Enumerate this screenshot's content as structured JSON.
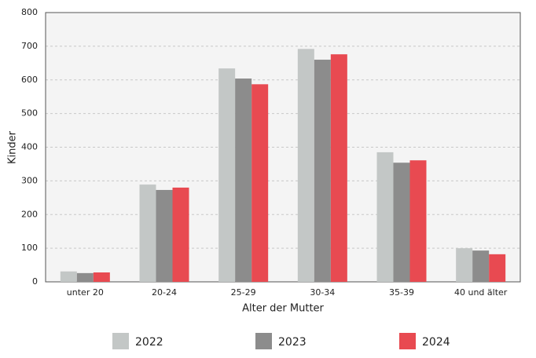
{
  "chart_data": {
    "type": "bar",
    "x_label": "Alter der Mutter",
    "y_label": "Kinder",
    "categories": [
      "unter 20",
      "20-24",
      "25-29",
      "30-34",
      "35-39",
      "40 und älter"
    ],
    "series": [
      {
        "name": "2022",
        "color": "#c3c7c6",
        "values": [
          31,
          289,
          634,
          692,
          385,
          100
        ]
      },
      {
        "name": "2023",
        "color": "#8c8c8c",
        "values": [
          26,
          273,
          604,
          660,
          354,
          93
        ]
      },
      {
        "name": "2024",
        "color": "#e84a51",
        "values": [
          28,
          280,
          587,
          676,
          361,
          82
        ]
      }
    ],
    "ylim": [
      0,
      800
    ],
    "yticks": [
      0,
      100,
      200,
      300,
      400,
      500,
      600,
      700,
      800
    ],
    "grid": true
  }
}
